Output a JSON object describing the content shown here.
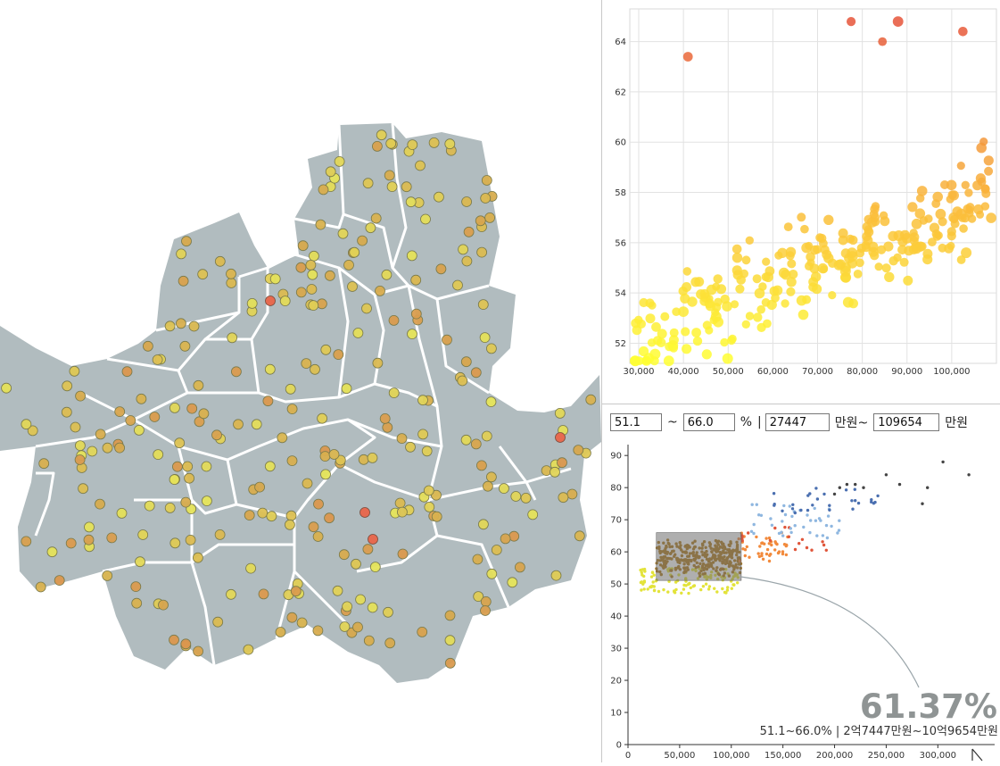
{
  "map": {
    "title": "",
    "colors": {
      "district_fill": "#b1bcbf",
      "border": "#ffffff",
      "low": "#e6e55a",
      "mid": "#d7a94d",
      "high": "#e66a50"
    }
  },
  "filter": {
    "rate_min": "51.1",
    "tilde": "~",
    "rate_max": "66.0",
    "percent_unit": "%",
    "pipe": "|",
    "price_min": "27447",
    "price_min_unit": "만원~",
    "price_max": "109654",
    "price_max_unit": "만원"
  },
  "summary": {
    "big_value": "61.37%",
    "range_text": "51.1~66.0% | 2억7447만원~10억9654만원"
  },
  "chart_data": [
    {
      "type": "scatter",
      "title": "",
      "xlabel": "",
      "ylabel": "",
      "xlim": [
        28000,
        110000
      ],
      "ylim": [
        51.2,
        65.3
      ],
      "x_ticks": [
        "30,000",
        "40,000",
        "50,000",
        "60,000",
        "70,000",
        "80,000",
        "90,000",
        "100,000"
      ],
      "y_ticks": [
        "52",
        "54",
        "56",
        "58",
        "60",
        "62",
        "64"
      ],
      "grid": true,
      "color_scale": [
        "#ffff33",
        "#f9b43c",
        "#e6553a"
      ],
      "outliers": [
        {
          "x": 41000,
          "y": 63.4
        },
        {
          "x": 77500,
          "y": 64.8
        },
        {
          "x": 84500,
          "y": 64.0
        },
        {
          "x": 88000,
          "y": 64.8
        },
        {
          "x": 102500,
          "y": 64.4
        }
      ]
    },
    {
      "type": "scatter",
      "title": "",
      "xlabel": "",
      "ylabel": "",
      "xlim": [
        0,
        355000
      ],
      "ylim": [
        0,
        92
      ],
      "x_ticks": [
        "0",
        "50,000",
        "100,000",
        "150,000",
        "200,000",
        "250,000",
        "300,000"
      ],
      "y_ticks": [
        "0",
        "10",
        "20",
        "30",
        "40",
        "50",
        "60",
        "70",
        "80",
        "90"
      ],
      "grid": false,
      "brush": {
        "x0": 27447,
        "x1": 109654,
        "y0": 51.1,
        "y1": 66.0
      },
      "series_colors": [
        "#e3e33a",
        "#b07a1a",
        "#f28a3c",
        "#e0553a",
        "#8fb7e0",
        "#4a6fb0",
        "#444444"
      ]
    }
  ]
}
